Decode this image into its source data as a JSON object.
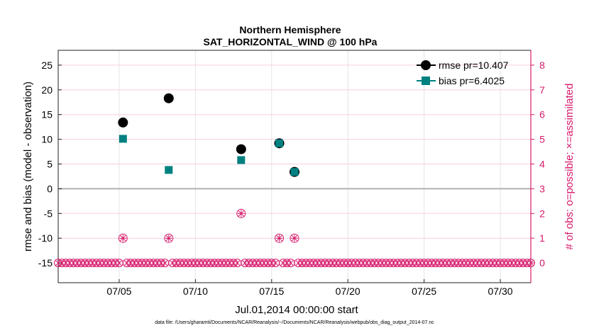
{
  "chart_data": {
    "type": "scatter",
    "title": "Northern Hemisphere",
    "subtitle": "SAT_HORIZONTAL_WIND @ 100 hPa",
    "xlabel": "Jul.01,2014 00:00:00 start",
    "ylabel": "rmse and bias (model - observation)",
    "y2label": "# of obs: o=possible; ×=assimilated",
    "xlim": [
      1,
      32
    ],
    "ylim": [
      -19,
      28
    ],
    "y2lim": [
      -0.8,
      8.6
    ],
    "xticks": [
      5,
      10,
      15,
      20,
      25,
      30
    ],
    "xtick_labels": [
      "07/05",
      "07/10",
      "07/15",
      "07/20",
      "07/25",
      "07/30"
    ],
    "yticks": [
      -15,
      -10,
      -5,
      0,
      5,
      10,
      15,
      20,
      25
    ],
    "ytick_labels": [
      "-15",
      "-10",
      "-5",
      "0",
      "5",
      "10",
      "15",
      "20",
      "25"
    ],
    "y2ticks": [
      0,
      1,
      2,
      3,
      4,
      5,
      6,
      7,
      8
    ],
    "y2tick_labels": [
      "0",
      "1",
      "2",
      "3",
      "4",
      "5",
      "6",
      "7",
      "8"
    ],
    "reference_line_y": 0,
    "series": [
      {
        "name": "rmse pr=10.407",
        "axis": "left",
        "color": "#000000",
        "x": [
          5.25,
          8.25,
          13.0,
          15.5,
          16.5
        ],
        "y": [
          13.4,
          18.3,
          8.0,
          9.2,
          3.4
        ]
      },
      {
        "name": "bias pr=6.4025",
        "axis": "left",
        "color": "#008080",
        "x": [
          5.25,
          8.25,
          13.0,
          15.5,
          16.5
        ],
        "y": [
          10.1,
          3.8,
          5.8,
          9.2,
          3.4
        ]
      },
      {
        "name": "obs possible",
        "axis": "right",
        "color": "#d61a6b",
        "x": [
          5.25,
          8.25,
          13.0,
          15.5,
          16.5
        ],
        "y": [
          1,
          1,
          2,
          1,
          1
        ]
      },
      {
        "name": "obs assimilated",
        "axis": "right",
        "color": "#d61a6b",
        "x": [
          5.25,
          8.25,
          13.0,
          15.5,
          16.5
        ],
        "y": [
          1,
          1,
          2,
          1,
          1
        ]
      }
    ],
    "zero_obs_interval_days": 0.25,
    "legend_position": "top-right"
  },
  "footer": "data file: /Users/gharamti/Documents/NCAR/Reanalysis/~/Documents/NCAR/Reanalysis/webpub/obs_diag_output_2014-07.nc"
}
